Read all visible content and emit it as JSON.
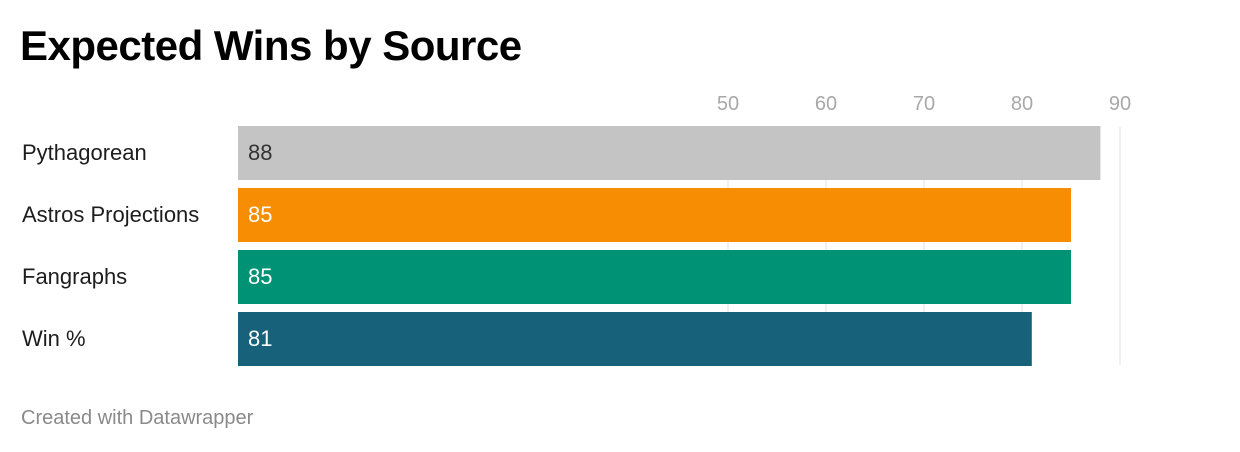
{
  "title": "Expected Wins by Source",
  "footer": "Created with Datawrapper",
  "chart_data": {
    "type": "bar",
    "orientation": "horizontal",
    "title": "Expected Wins by Source",
    "xlabel": "",
    "ylabel": "",
    "categories": [
      "Pythagorean",
      "Astros Projections",
      "Fangraphs",
      "Win %"
    ],
    "values": [
      88,
      85,
      85,
      81
    ],
    "value_labels": [
      "88",
      "85",
      "85",
      "81"
    ],
    "colors": [
      "#c4c4c4",
      "#f78d02",
      "#009274",
      "#17617a"
    ],
    "value_label_colors": [
      "#333333",
      "#ffffff",
      "#ffffff",
      "#ffffff"
    ],
    "ticks": [
      50,
      60,
      70,
      80,
      90
    ],
    "tick_labels": [
      "50",
      "60",
      "70",
      "80",
      "90"
    ],
    "xlim": [
      0,
      90
    ],
    "grid": true,
    "gridline_color": "#e0e0e0",
    "tick_label_color": "#a8a8a8",
    "axis_position": "top",
    "legend": "none"
  }
}
